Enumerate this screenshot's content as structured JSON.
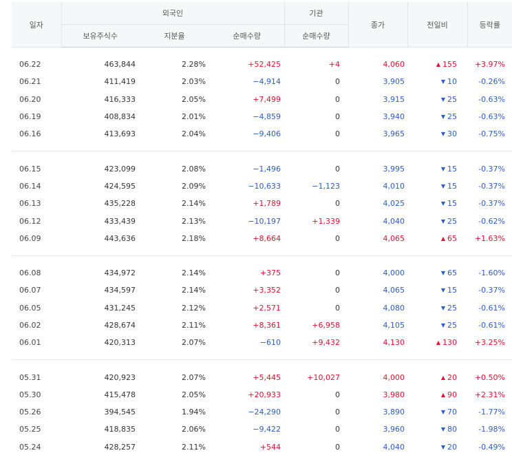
{
  "headers": {
    "date": "일자",
    "foreign": "외국인",
    "institution": "기관",
    "holdings": "보유주식수",
    "share_ratio": "지분율",
    "foreign_net": "순매수량",
    "inst_net": "순매수량",
    "close": "종가",
    "change": "전일비",
    "rate": "등락률"
  },
  "colors": {
    "up": "#e5112e",
    "down": "#2d5cc2"
  },
  "groups": [
    [
      {
        "date": "06.22",
        "holdings": "463,844",
        "share": "2.28%",
        "fnet": "+52,425",
        "inet": "+4",
        "close": "4,060",
        "dir": "up",
        "diff": "155",
        "rate": "+3.97%"
      },
      {
        "date": "06.21",
        "holdings": "411,419",
        "share": "2.03%",
        "fnet": "−4,914",
        "inet": "0",
        "close": "3,905",
        "dir": "down",
        "diff": "10",
        "rate": "-0.26%"
      },
      {
        "date": "06.20",
        "holdings": "416,333",
        "share": "2.05%",
        "fnet": "+7,499",
        "inet": "0",
        "close": "3,915",
        "dir": "down",
        "diff": "25",
        "rate": "-0.63%"
      },
      {
        "date": "06.19",
        "holdings": "408,834",
        "share": "2.01%",
        "fnet": "−4,859",
        "inet": "0",
        "close": "3,940",
        "dir": "down",
        "diff": "25",
        "rate": "-0.63%"
      },
      {
        "date": "06.16",
        "holdings": "413,693",
        "share": "2.04%",
        "fnet": "−9,406",
        "inet": "0",
        "close": "3,965",
        "dir": "down",
        "diff": "30",
        "rate": "-0.75%"
      }
    ],
    [
      {
        "date": "06.15",
        "holdings": "423,099",
        "share": "2.08%",
        "fnet": "−1,496",
        "inet": "0",
        "close": "3,995",
        "dir": "down",
        "diff": "15",
        "rate": "-0.37%"
      },
      {
        "date": "06.14",
        "holdings": "424,595",
        "share": "2.09%",
        "fnet": "−10,633",
        "inet": "−1,123",
        "close": "4,010",
        "dir": "down",
        "diff": "15",
        "rate": "-0.37%"
      },
      {
        "date": "06.13",
        "holdings": "435,228",
        "share": "2.14%",
        "fnet": "+1,789",
        "inet": "0",
        "close": "4,025",
        "dir": "down",
        "diff": "15",
        "rate": "-0.37%"
      },
      {
        "date": "06.12",
        "holdings": "433,439",
        "share": "2.13%",
        "fnet": "−10,197",
        "inet": "+1,339",
        "close": "4,040",
        "dir": "down",
        "diff": "25",
        "rate": "-0.62%"
      },
      {
        "date": "06.09",
        "holdings": "443,636",
        "share": "2.18%",
        "fnet": "+8,664",
        "inet": "0",
        "close": "4,065",
        "dir": "up",
        "diff": "65",
        "rate": "+1.63%"
      }
    ],
    [
      {
        "date": "06.08",
        "holdings": "434,972",
        "share": "2.14%",
        "fnet": "+375",
        "inet": "0",
        "close": "4,000",
        "dir": "down",
        "diff": "65",
        "rate": "-1.60%"
      },
      {
        "date": "06.07",
        "holdings": "434,597",
        "share": "2.14%",
        "fnet": "+3,352",
        "inet": "0",
        "close": "4,065",
        "dir": "down",
        "diff": "15",
        "rate": "-0.37%"
      },
      {
        "date": "06.05",
        "holdings": "431,245",
        "share": "2.12%",
        "fnet": "+2,571",
        "inet": "0",
        "close": "4,080",
        "dir": "down",
        "diff": "25",
        "rate": "-0.61%"
      },
      {
        "date": "06.02",
        "holdings": "428,674",
        "share": "2.11%",
        "fnet": "+8,361",
        "inet": "+6,958",
        "close": "4,105",
        "dir": "down",
        "diff": "25",
        "rate": "-0.61%"
      },
      {
        "date": "06.01",
        "holdings": "420,313",
        "share": "2.07%",
        "fnet": "−610",
        "inet": "+9,432",
        "close": "4,130",
        "dir": "up",
        "diff": "130",
        "rate": "+3.25%"
      }
    ],
    [
      {
        "date": "05.31",
        "holdings": "420,923",
        "share": "2.07%",
        "fnet": "+5,445",
        "inet": "+10,027",
        "close": "4,000",
        "dir": "up",
        "diff": "20",
        "rate": "+0.50%"
      },
      {
        "date": "05.30",
        "holdings": "415,478",
        "share": "2.05%",
        "fnet": "+20,933",
        "inet": "0",
        "close": "3,980",
        "dir": "up",
        "diff": "90",
        "rate": "+2.31%"
      },
      {
        "date": "05.26",
        "holdings": "394,545",
        "share": "1.94%",
        "fnet": "−24,290",
        "inet": "0",
        "close": "3,890",
        "dir": "down",
        "diff": "70",
        "rate": "-1.77%"
      },
      {
        "date": "05.25",
        "holdings": "418,835",
        "share": "2.06%",
        "fnet": "−9,422",
        "inet": "0",
        "close": "3,960",
        "dir": "down",
        "diff": "80",
        "rate": "-1.98%"
      },
      {
        "date": "05.24",
        "holdings": "428,257",
        "share": "2.11%",
        "fnet": "+544",
        "inet": "0",
        "close": "4,040",
        "dir": "down",
        "diff": "20",
        "rate": "-0.49%"
      }
    ]
  ]
}
